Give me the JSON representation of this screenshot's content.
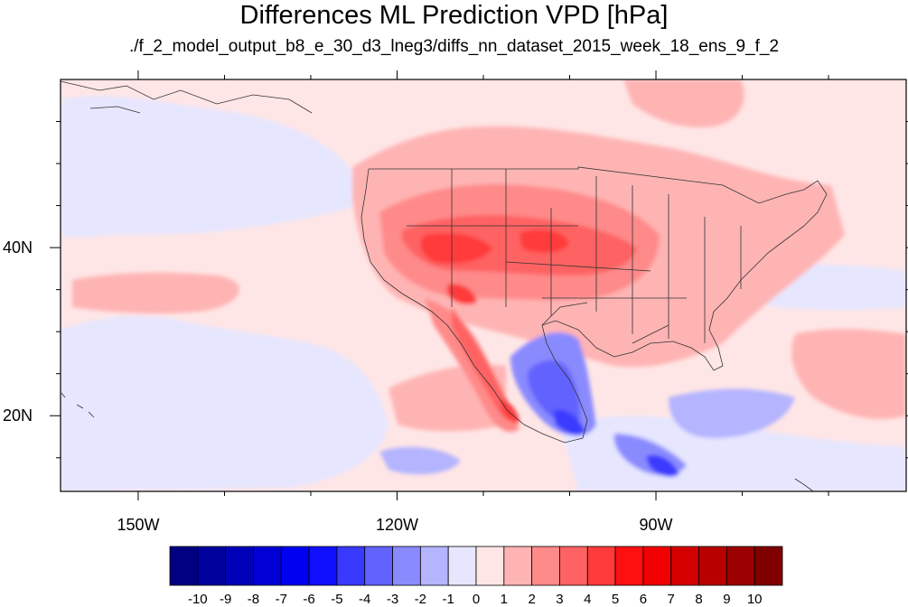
{
  "title": "Differences ML Prediction VPD [hPa]",
  "subtitle": "./f_2_model_output_b8_e_30_d3_lneg3/diffs_nn_dataset_2015_week_18_ens_9_f_2",
  "map": {
    "lon_range": [
      -159,
      -61
    ],
    "lat_range": [
      11,
      60
    ],
    "lon_ticks": [
      {
        "value": -150,
        "label": "150W"
      },
      {
        "value": -120,
        "label": "120W"
      },
      {
        "value": -90,
        "label": "90W"
      }
    ],
    "lat_ticks": [
      {
        "value": 40,
        "label": "40N"
      },
      {
        "value": 20,
        "label": "20N"
      }
    ]
  },
  "colorbar": {
    "labels": [
      "-10",
      "-9",
      "-8",
      "-7",
      "-6",
      "-5",
      "-4",
      "-3",
      "-2",
      "-1",
      "0",
      "1",
      "2",
      "3",
      "4",
      "5",
      "6",
      "7",
      "8",
      "9",
      "10"
    ],
    "colors": [
      "#000080",
      "#00009c",
      "#0000b8",
      "#0000d4",
      "#0000f0",
      "#1010ff",
      "#3a3aff",
      "#6262ff",
      "#8a8aff",
      "#b4b4ff",
      "#e6e6ff",
      "#ffe6e6",
      "#ffb4b4",
      "#ff8a8a",
      "#ff6262",
      "#ff3a3a",
      "#ff1010",
      "#f00000",
      "#d40000",
      "#b80000",
      "#9c0000",
      "#800000"
    ]
  }
}
